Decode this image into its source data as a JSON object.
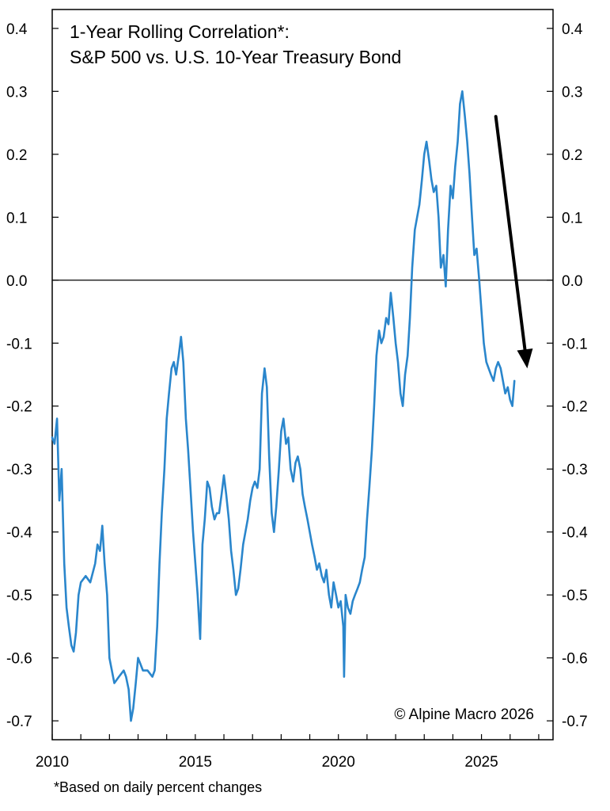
{
  "chart_data": {
    "type": "line",
    "title_line1": "1-Year Rolling Correlation*:",
    "title_line2": "S&P 500 vs. U.S. 10-Year Treasury Bond",
    "copyright": "© Alpine Macro 2026",
    "footnote": "*Based on daily percent changes",
    "xlim": [
      2010,
      2027.5
    ],
    "ylim": [
      -0.73,
      0.43
    ],
    "x_ticks": [
      2010,
      2015,
      2020,
      2025
    ],
    "x_tick_labels": [
      "2010",
      "2015",
      "2020",
      "2025"
    ],
    "y_ticks": [
      0.4,
      0.3,
      0.2,
      0.1,
      0.0,
      -0.1,
      -0.2,
      -0.3,
      -0.4,
      -0.5,
      -0.6,
      -0.7
    ],
    "y_tick_labels": [
      "0.4",
      "0.3",
      "0.2",
      "0.1",
      "0.0",
      "-0.1",
      "-0.2",
      "-0.3",
      "-0.4",
      "-0.5",
      "-0.6",
      "-0.7"
    ],
    "y_axis_sides": "left and right",
    "grid": false,
    "reference_line": 0.0,
    "line_color": "#2a86cc",
    "annotation": {
      "type": "arrow",
      "from": [
        2025.5,
        0.26
      ],
      "to": [
        2026.6,
        -0.14
      ],
      "color": "#000000"
    },
    "series": [
      {
        "x": [
          2010.0,
          2010.08,
          2010.17,
          2010.25,
          2010.33,
          2010.42,
          2010.5,
          2010.58,
          2010.67,
          2010.75,
          2010.83,
          2010.92,
          2011.0,
          2011.17,
          2011.33,
          2011.5,
          2011.58,
          2011.67,
          2011.75,
          2011.83,
          2011.92,
          2012.0,
          2012.17,
          2012.33,
          2012.5,
          2012.58,
          2012.67,
          2012.75,
          2012.83,
          2012.92,
          2013.0,
          2013.17,
          2013.33,
          2013.5,
          2013.58,
          2013.67,
          2013.75,
          2013.83,
          2013.92,
          2014.0,
          2014.08,
          2014.17,
          2014.25,
          2014.33,
          2014.42,
          2014.5,
          2014.58,
          2014.67,
          2014.75,
          2014.83,
          2014.92,
          2015.0,
          2015.08,
          2015.17,
          2015.25,
          2015.33,
          2015.42,
          2015.5,
          2015.58,
          2015.67,
          2015.75,
          2015.83,
          2015.92,
          2016.0,
          2016.08,
          2016.17,
          2016.25,
          2016.33,
          2016.42,
          2016.5,
          2016.58,
          2016.67,
          2016.75,
          2016.83,
          2016.92,
          2017.0,
          2017.08,
          2017.17,
          2017.25,
          2017.33,
          2017.42,
          2017.5,
          2017.58,
          2017.67,
          2017.75,
          2017.83,
          2017.92,
          2018.0,
          2018.08,
          2018.17,
          2018.25,
          2018.33,
          2018.42,
          2018.5,
          2018.58,
          2018.67,
          2018.75,
          2018.83,
          2018.92,
          2019.0,
          2019.08,
          2019.17,
          2019.25,
          2019.33,
          2019.42,
          2019.5,
          2019.58,
          2019.67,
          2019.75,
          2019.83,
          2019.92,
          2020.0,
          2020.08,
          2020.17,
          2020.2,
          2020.25,
          2020.33,
          2020.42,
          2020.5,
          2020.58,
          2020.67,
          2020.75,
          2020.83,
          2020.92,
          2021.0,
          2021.08,
          2021.17,
          2021.25,
          2021.33,
          2021.42,
          2021.5,
          2021.58,
          2021.67,
          2021.75,
          2021.83,
          2021.92,
          2022.0,
          2022.08,
          2022.17,
          2022.25,
          2022.33,
          2022.42,
          2022.5,
          2022.58,
          2022.67,
          2022.75,
          2022.83,
          2022.92,
          2023.0,
          2023.08,
          2023.17,
          2023.25,
          2023.33,
          2023.42,
          2023.5,
          2023.58,
          2023.67,
          2023.75,
          2023.83,
          2023.92,
          2024.0,
          2024.08,
          2024.17,
          2024.25,
          2024.33,
          2024.42,
          2024.5,
          2024.58,
          2024.67,
          2024.75,
          2024.83,
          2024.92,
          2025.0,
          2025.08,
          2025.17,
          2025.25,
          2025.33,
          2025.42,
          2025.5,
          2025.58,
          2025.67,
          2025.75,
          2025.83,
          2025.92,
          2026.0,
          2026.08,
          2026.15
        ],
        "y": [
          -0.25,
          -0.26,
          -0.22,
          -0.35,
          -0.3,
          -0.45,
          -0.52,
          -0.55,
          -0.58,
          -0.59,
          -0.56,
          -0.5,
          -0.48,
          -0.47,
          -0.48,
          -0.45,
          -0.42,
          -0.43,
          -0.39,
          -0.45,
          -0.5,
          -0.6,
          -0.64,
          -0.63,
          -0.62,
          -0.63,
          -0.65,
          -0.7,
          -0.68,
          -0.64,
          -0.6,
          -0.62,
          -0.62,
          -0.63,
          -0.62,
          -0.55,
          -0.45,
          -0.37,
          -0.3,
          -0.22,
          -0.18,
          -0.14,
          -0.13,
          -0.15,
          -0.12,
          -0.09,
          -0.13,
          -0.22,
          -0.27,
          -0.33,
          -0.4,
          -0.45,
          -0.5,
          -0.57,
          -0.42,
          -0.38,
          -0.32,
          -0.33,
          -0.36,
          -0.38,
          -0.37,
          -0.37,
          -0.34,
          -0.31,
          -0.34,
          -0.38,
          -0.43,
          -0.46,
          -0.5,
          -0.49,
          -0.46,
          -0.42,
          -0.4,
          -0.38,
          -0.35,
          -0.33,
          -0.32,
          -0.33,
          -0.3,
          -0.18,
          -0.14,
          -0.17,
          -0.28,
          -0.37,
          -0.4,
          -0.36,
          -0.3,
          -0.24,
          -0.22,
          -0.26,
          -0.25,
          -0.3,
          -0.32,
          -0.29,
          -0.28,
          -0.3,
          -0.34,
          -0.36,
          -0.38,
          -0.4,
          -0.42,
          -0.44,
          -0.46,
          -0.45,
          -0.47,
          -0.48,
          -0.46,
          -0.5,
          -0.52,
          -0.48,
          -0.5,
          -0.52,
          -0.51,
          -0.55,
          -0.63,
          -0.5,
          -0.52,
          -0.53,
          -0.51,
          -0.5,
          -0.49,
          -0.48,
          -0.46,
          -0.44,
          -0.38,
          -0.33,
          -0.27,
          -0.2,
          -0.12,
          -0.08,
          -0.1,
          -0.09,
          -0.06,
          -0.07,
          -0.02,
          -0.06,
          -0.1,
          -0.13,
          -0.18,
          -0.2,
          -0.15,
          -0.12,
          -0.06,
          0.02,
          0.08,
          0.1,
          0.12,
          0.16,
          0.2,
          0.22,
          0.19,
          0.16,
          0.14,
          0.15,
          0.1,
          0.02,
          0.04,
          -0.01,
          0.08,
          0.15,
          0.13,
          0.18,
          0.22,
          0.28,
          0.3,
          0.26,
          0.22,
          0.17,
          0.1,
          0.04,
          0.05,
          0.0,
          -0.05,
          -0.1,
          -0.13,
          -0.14,
          -0.15,
          -0.16,
          -0.14,
          -0.13,
          -0.14,
          -0.16,
          -0.18,
          -0.17,
          -0.19,
          -0.2,
          -0.16
        ]
      }
    ]
  }
}
